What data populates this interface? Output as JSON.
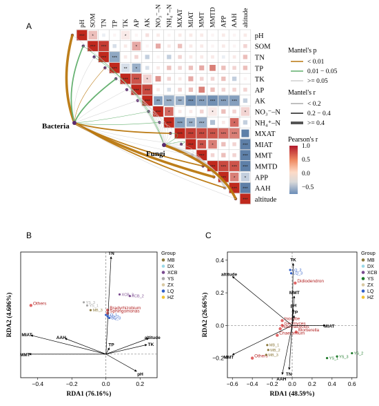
{
  "panels": {
    "a": "A",
    "b": "B",
    "c": "C"
  },
  "chart_data": [
    {
      "type": "heatmap",
      "panel": "A",
      "variables": [
        "pH",
        "SOM",
        "TN",
        "TP",
        "TK",
        "AP",
        "AK",
        "NO₃⁻–N",
        "NH₄⁺–N",
        "MXAT",
        "MIAT",
        "MMT",
        "MMTD",
        "APP",
        "AAH",
        "altitude"
      ],
      "matrix": [
        [
          1,
          0.3,
          -0.1,
          0.05,
          0.1,
          0.05,
          0.15,
          0.1,
          0.05,
          0.1,
          0.1,
          0.1,
          0.05,
          0.1,
          0.05,
          0.1
        ],
        [
          0.3,
          1,
          0.9,
          -0.2,
          0.1,
          0.4,
          0.05,
          0.4,
          0.1,
          0.3,
          0.1,
          0.1,
          0.05,
          0.1,
          0.05,
          0.2
        ],
        [
          -0.1,
          0.9,
          1,
          -0.55,
          0.1,
          0.2,
          -0.3,
          0.05,
          -0.3,
          0.2,
          0.1,
          0.1,
          0.1,
          -0.1,
          0.1,
          0.3
        ],
        [
          0.05,
          -0.2,
          -0.55,
          1,
          -0.2,
          -0.5,
          -0.2,
          0.1,
          0.3,
          0.2,
          0.3,
          0.4,
          0.6,
          0.3,
          0.2,
          0.3
        ],
        [
          0.1,
          0.1,
          0.1,
          -0.2,
          1,
          0.8,
          0.2,
          0.5,
          0.2,
          0.1,
          0.4,
          0.2,
          0.2,
          0.3,
          -0.3,
          0.05
        ],
        [
          0.05,
          0.4,
          0.2,
          -0.5,
          0.8,
          1,
          0.85,
          0.1,
          -0.2,
          0.2,
          0.3,
          0.6,
          0.3,
          0.2,
          0.2,
          0.2
        ],
        [
          0.15,
          0.05,
          -0.3,
          -0.2,
          0.2,
          0.85,
          1,
          -0.6,
          -0.5,
          -0.5,
          -0.7,
          -0.6,
          -0.7,
          -0.6,
          -0.6,
          -0.3
        ],
        [
          0.1,
          0.4,
          0.05,
          0.1,
          0.5,
          0.1,
          -0.6,
          1,
          0.7,
          0.1,
          0.1,
          0.2,
          0.1,
          0.3,
          0.2,
          0.2
        ],
        [
          0.05,
          0.1,
          -0.3,
          0.3,
          0.2,
          -0.2,
          -0.5,
          0.7,
          1,
          -0.6,
          -0.5,
          -0.5,
          -0.4,
          0.1,
          0.7,
          -0.3
        ],
        [
          0.1,
          0.3,
          0.2,
          0.2,
          0.1,
          0.2,
          -0.5,
          0.1,
          -0.6,
          1,
          0.9,
          0.85,
          0.8,
          0.7,
          0.6,
          -0.9
        ],
        [
          0.1,
          0.1,
          0.1,
          0.3,
          0.4,
          0.3,
          -0.7,
          0.1,
          -0.5,
          0.9,
          1,
          0.8,
          0.6,
          0.3,
          0.2,
          -0.9
        ],
        [
          0.1,
          0.1,
          0.1,
          0.4,
          0.2,
          0.6,
          -0.6,
          0.2,
          -0.5,
          0.85,
          0.8,
          1,
          0.2,
          0.3,
          0.2,
          -0.8
        ],
        [
          0.05,
          0.05,
          0.1,
          0.6,
          0.2,
          0.3,
          -0.7,
          0.1,
          -0.4,
          0.8,
          0.6,
          0.2,
          1,
          0.85,
          0.8,
          -0.85
        ],
        [
          0.1,
          0.1,
          -0.1,
          0.3,
          0.3,
          0.2,
          -0.6,
          0.3,
          0.1,
          0.7,
          0.3,
          0.3,
          0.85,
          1,
          0.6,
          -0.3
        ],
        [
          0.05,
          0.05,
          0.1,
          0.2,
          -0.3,
          0.2,
          -0.6,
          0.2,
          0.7,
          0.6,
          0.2,
          0.2,
          0.8,
          0.6,
          1,
          -0.9
        ],
        [
          0.1,
          0.2,
          0.3,
          0.3,
          0.05,
          0.2,
          -0.3,
          0.2,
          -0.3,
          -0.9,
          -0.9,
          -0.8,
          -0.85,
          -0.3,
          -0.9,
          1
        ]
      ],
      "significance": [
        [
          "***",
          "*",
          "",
          "",
          "*",
          "",
          "",
          "",
          "",
          "",
          "",
          "",
          "",
          "",
          "",
          ""
        ],
        [
          "*",
          "***",
          "***",
          "",
          "",
          "*",
          "",
          "",
          "",
          "",
          "",
          "",
          "",
          "",
          "",
          ""
        ],
        [
          "",
          "***",
          "***",
          "***",
          "",
          "",
          "",
          "",
          "",
          "",
          "",
          "",
          "",
          "",
          "",
          ""
        ],
        [
          "",
          "",
          "***",
          "***",
          "**",
          "*",
          "",
          "",
          "",
          "",
          "",
          "",
          "",
          "",
          "",
          ""
        ],
        [
          "*",
          "",
          "",
          "**",
          "***",
          "***",
          "*",
          "",
          "",
          "",
          "",
          "",
          "",
          "",
          "",
          ""
        ],
        [
          "",
          "*",
          "",
          "*",
          "***",
          "***",
          "***",
          "",
          "",
          "",
          "",
          "",
          "",
          "",
          "",
          ""
        ],
        [
          "",
          "",
          "",
          "",
          "*",
          "***",
          "***",
          "**",
          "***",
          "**",
          "***",
          "***",
          "***",
          "***",
          "***",
          ""
        ],
        [
          "",
          "",
          "",
          "",
          "",
          "",
          "**",
          "***",
          "*",
          "",
          "",
          "",
          "*",
          "",
          "",
          "*"
        ],
        [
          "",
          "",
          "",
          "",
          "",
          "",
          "***",
          "*",
          "***",
          "***",
          "**",
          "***",
          "",
          "",
          "*",
          ""
        ],
        [
          "",
          "",
          "",
          "",
          "",
          "",
          "**",
          "",
          "***",
          "***",
          "***",
          "***",
          "***",
          "***",
          "***",
          ""
        ],
        [
          "",
          "",
          "",
          "",
          "",
          "",
          "***",
          "",
          "**",
          "***",
          "***",
          "**",
          "*",
          "",
          "",
          "***"
        ],
        [
          "",
          "",
          "",
          "",
          "",
          "",
          "***",
          "",
          "***",
          "***",
          "**",
          "***",
          "",
          "",
          "",
          "***"
        ],
        [
          "",
          "",
          "",
          "",
          "",
          "",
          "***",
          "*",
          "",
          "***",
          "*",
          "",
          "***",
          "***",
          "***",
          "***"
        ],
        [
          "",
          "",
          "",
          "",
          "",
          "",
          "***",
          "",
          "",
          "***",
          "",
          "",
          "***",
          "***",
          "*",
          "*"
        ],
        [
          "",
          "",
          "",
          "",
          "",
          "",
          "***",
          "",
          "*",
          "***",
          "",
          "",
          "***",
          "*",
          "***",
          "***"
        ],
        [
          "",
          "",
          "",
          "",
          "",
          "",
          "",
          "*",
          "",
          "",
          "***",
          "***",
          "***",
          "*",
          "***",
          "***"
        ]
      ],
      "mantel_sources": [
        "Bacteria",
        "Fungi"
      ],
      "mantel_legend_p_title": "Mantel's p",
      "mantel_legend_p": [
        "< 0.01",
        "0.01 − 0.05",
        ">= 0.05"
      ],
      "mantel_legend_r_title": "Mantel's r",
      "mantel_legend_r": [
        "< 0.2",
        "0.2 − 0.4",
        ">= 0.4"
      ],
      "colorbar_title": "Pearson's r",
      "colorbar_ticks": [
        "1.0",
        "0.5",
        "0.0",
        "−0.5"
      ],
      "colors": {
        "p_low": "#b9770e",
        "p_mid": "#5fae6a",
        "p_high": "#cfcfcf",
        "pos": "#c0291d",
        "neg": "#5e80a8"
      }
    },
    {
      "type": "scatter",
      "panel": "B",
      "xlabel": "RDA1 (76.16%)",
      "ylabel": "RDA2 (4.606%)",
      "xlim": [
        -0.5,
        0.3
      ],
      "ylim": [
        -0.15,
        0.65
      ],
      "xticks": [
        "−0.4",
        "−0.2",
        "0.0",
        "0.2"
      ],
      "legend_title": "Group",
      "groups": [
        {
          "name": "MB",
          "color": "#8c7a3e"
        },
        {
          "name": "DX",
          "color": "#9bd8e8"
        },
        {
          "name": "XCB",
          "color": "#7a4a8f"
        },
        {
          "name": "YS",
          "color": "#a8a8a8"
        },
        {
          "name": "ZX",
          "color": "#d9c9a3"
        },
        {
          "name": "LQ",
          "color": "#3360c8"
        },
        {
          "name": "HZ",
          "color": "#f1c232"
        }
      ],
      "samples": [
        {
          "label": "XCB_3",
          "group": "XCB",
          "x": 0.08,
          "y": 0.38
        },
        {
          "label": "XCB_2",
          "group": "XCB",
          "x": 0.14,
          "y": 0.37
        },
        {
          "label": "YS_3",
          "group": "YS",
          "x": -0.13,
          "y": 0.33
        },
        {
          "label": "YS_1",
          "group": "YS",
          "x": -0.11,
          "y": 0.31
        },
        {
          "label": "MB_3",
          "group": "MB",
          "x": -0.09,
          "y": 0.28
        },
        {
          "label": "LQ_1",
          "group": "LQ",
          "x": 0.0,
          "y": 0.25
        },
        {
          "label": "LQ_2",
          "group": "LQ",
          "x": 0.01,
          "y": 0.24
        },
        {
          "label": "LQ_3",
          "group": "LQ",
          "x": 0.02,
          "y": 0.23
        }
      ],
      "vectors": [
        {
          "name": "TN",
          "x": 0.03,
          "y": 0.62
        },
        {
          "name": "MIAT",
          "x": -0.44,
          "y": 0.12
        },
        {
          "name": "AAH",
          "x": -0.24,
          "y": 0.1
        },
        {
          "name": "MMT",
          "x": -0.45,
          "y": 0.0
        },
        {
          "name": "TP",
          "x": 0.02,
          "y": 0.04
        },
        {
          "name": "pH",
          "x": 0.18,
          "y": -0.11
        },
        {
          "name": "altitude",
          "x": 0.25,
          "y": 0.1
        },
        {
          "name": "TK",
          "x": 0.24,
          "y": 0.06
        }
      ],
      "taxa": [
        {
          "name": "Bradyrhizobium",
          "x": 0.01,
          "y": 0.28
        },
        {
          "name": "Sphingomonas",
          "x": 0.01,
          "y": 0.26
        },
        {
          "name": "Others",
          "x": -0.44,
          "y": 0.31
        }
      ]
    },
    {
      "type": "scatter",
      "panel": "C",
      "xlabel": "RDA1 (48.59%)",
      "ylabel": "RDA2 (26.66%)",
      "xlim": [
        -0.65,
        0.65
      ],
      "ylim": [
        -0.32,
        0.45
      ],
      "xticks": [
        "−0.6",
        "−0.4",
        "−0.2",
        "0.0",
        "0.2",
        "0.4",
        "0.6"
      ],
      "yticks": [
        "0.4",
        "0.2",
        "0.0",
        "−0.2"
      ],
      "legend_title": "Group",
      "groups": [
        {
          "name": "MB",
          "color": "#8c7a3e"
        },
        {
          "name": "DX",
          "color": "#9bd8e8"
        },
        {
          "name": "XCB",
          "color": "#7a4a8f"
        },
        {
          "name": "YS",
          "color": "#1e7a2a"
        },
        {
          "name": "ZX",
          "color": "#d9c9a3"
        },
        {
          "name": "LQ",
          "color": "#3360c8"
        },
        {
          "name": "HZ",
          "color": "#f1c232"
        }
      ],
      "samples": [
        {
          "label": "LQ_2",
          "group": "LQ",
          "x": -0.02,
          "y": 0.34
        },
        {
          "label": "LQ_3",
          "group": "LQ",
          "x": -0.01,
          "y": 0.32
        },
        {
          "label": "YS_1",
          "group": "YS",
          "x": 0.35,
          "y": -0.2
        },
        {
          "label": "YS_3",
          "group": "YS",
          "x": 0.45,
          "y": -0.19
        },
        {
          "label": "YS_2",
          "group": "YS",
          "x": 0.6,
          "y": -0.17
        },
        {
          "label": "MB_1",
          "group": "MB",
          "x": -0.25,
          "y": -0.12
        },
        {
          "label": "MB_2",
          "group": "MB",
          "x": -0.24,
          "y": -0.15
        },
        {
          "label": "MB_3",
          "group": "MB",
          "x": -0.26,
          "y": -0.18
        }
      ],
      "vectors": [
        {
          "name": "TK",
          "x": 0.01,
          "y": 0.38
        },
        {
          "name": "altitude",
          "x": -0.6,
          "y": 0.3
        },
        {
          "name": "MMT",
          "x": 0.02,
          "y": 0.18
        },
        {
          "name": "pH",
          "x": 0.01,
          "y": 0.1
        },
        {
          "name": "TP",
          "x": 0.02,
          "y": 0.06
        },
        {
          "name": "MIAT",
          "x": 0.33,
          "y": 0.0
        },
        {
          "name": "MMT",
          "x": -0.6,
          "y": -0.18
        },
        {
          "name": "AAH",
          "x": -0.1,
          "y": -0.3
        },
        {
          "name": "TN",
          "x": -0.03,
          "y": -0.27
        }
      ],
      "taxa": [
        {
          "name": "Didiodendron",
          "x": 0.03,
          "y": 0.26
        },
        {
          "name": "Inocybe",
          "x": -0.1,
          "y": 0.03
        },
        {
          "name": "Geomyces",
          "x": -0.1,
          "y": 0.0
        },
        {
          "name": "Naemacyclus",
          "x": -0.12,
          "y": -0.02
        },
        {
          "name": "Mortierella",
          "x": 0.04,
          "y": -0.04
        },
        {
          "name": "Chaetomium",
          "x": -0.15,
          "y": -0.06
        },
        {
          "name": "Others",
          "x": -0.4,
          "y": -0.2
        }
      ]
    }
  ]
}
